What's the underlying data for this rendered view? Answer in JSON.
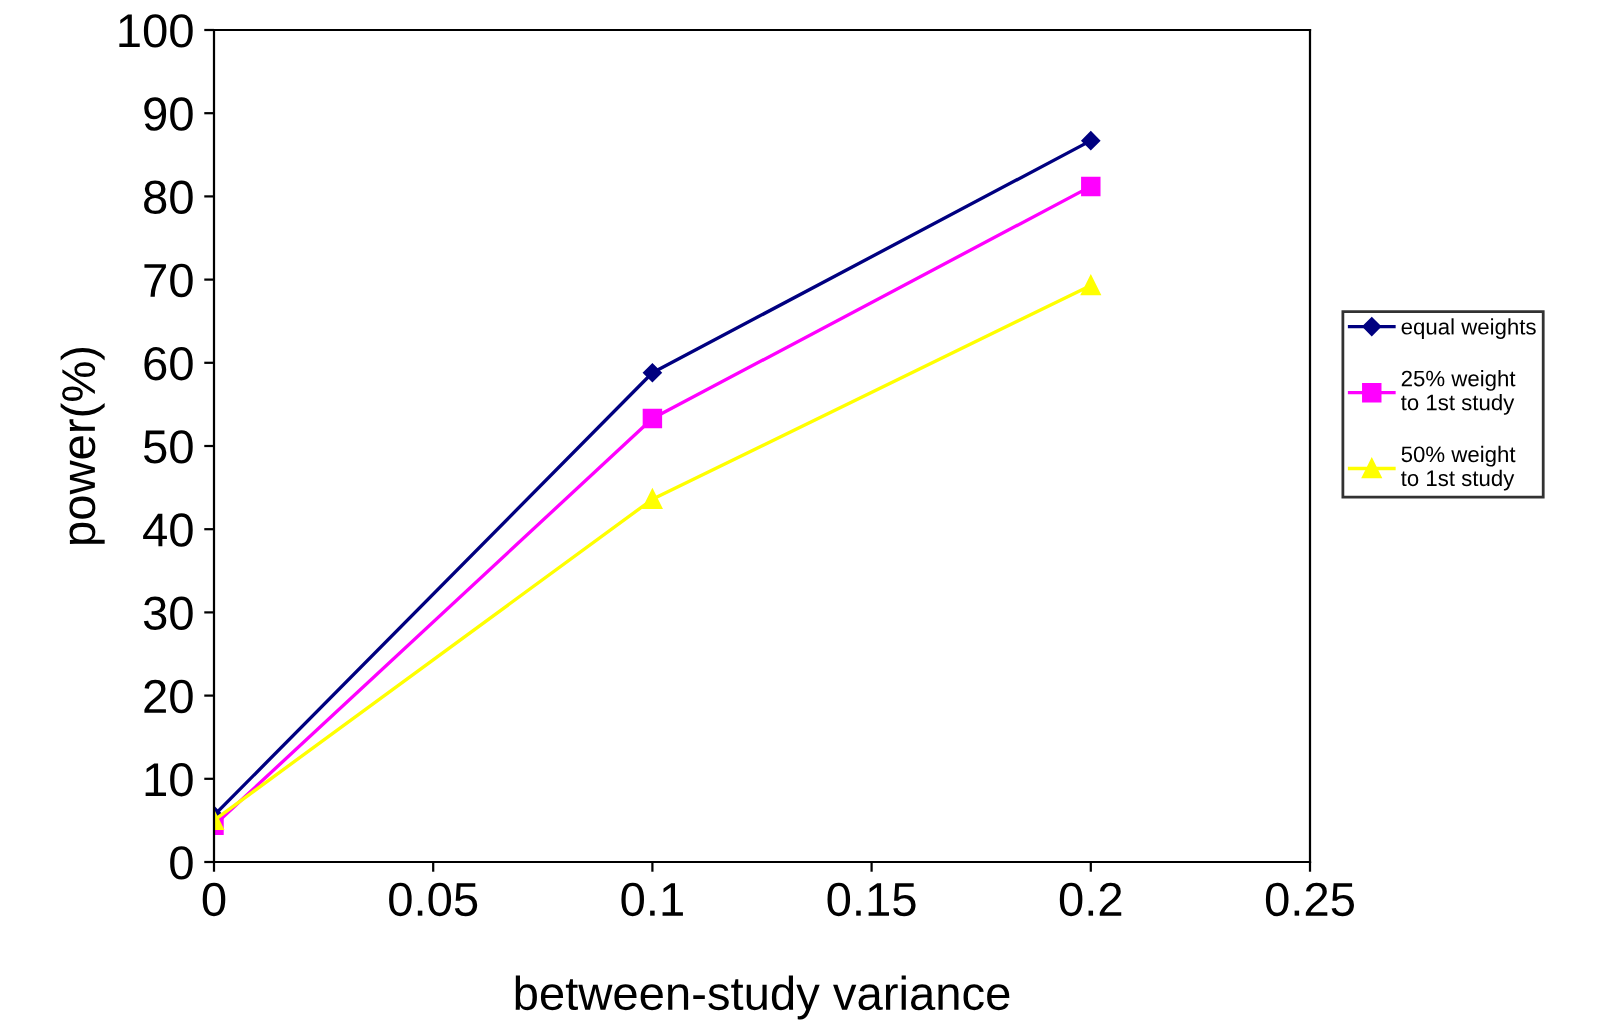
{
  "chart_data": {
    "type": "line",
    "xlabel": "between-study variance",
    "ylabel": "power(%)",
    "x": [
      0,
      0.1,
      0.2
    ],
    "series": [
      {
        "name": "equal weights",
        "color": "#000080",
        "marker": "diamond",
        "values": [
          5.6,
          58.8,
          86.7
        ]
      },
      {
        "name": "25% weight\nto 1st study",
        "color": "#ff00ff",
        "marker": "square",
        "values": [
          4.4,
          53.3,
          81.2
        ]
      },
      {
        "name": "50% weight\nto 1st study",
        "color": "#ffff00",
        "marker": "triangle",
        "values": [
          5.0,
          43.6,
          69.3
        ]
      }
    ],
    "xlim": [
      0,
      0.25
    ],
    "xticks": [
      0,
      0.05,
      0.1,
      0.15,
      0.2,
      0.25
    ],
    "ylim": [
      0,
      100
    ],
    "yticks": [
      0,
      10,
      20,
      30,
      40,
      50,
      60,
      70,
      80,
      90,
      100
    ],
    "grid": false,
    "legend": "right",
    "line_style": "solid"
  }
}
